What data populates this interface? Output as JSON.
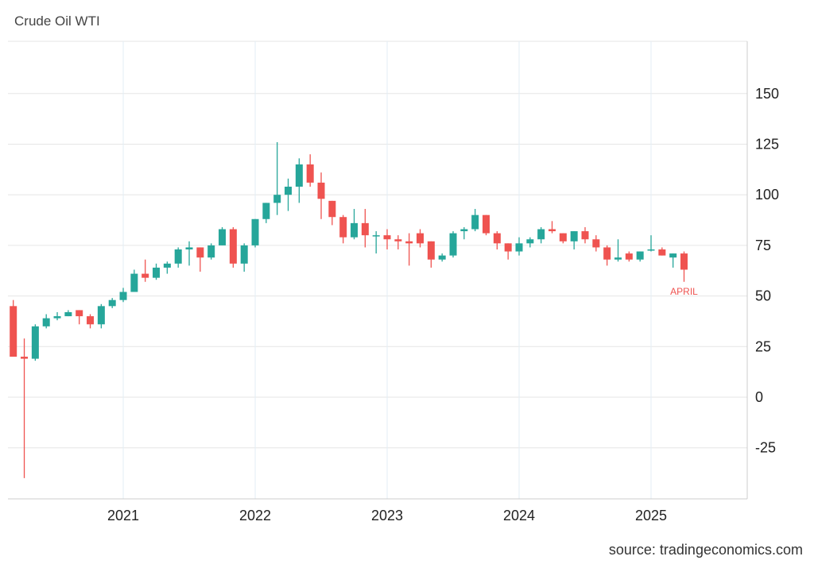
{
  "title": "Crude Oil WTI",
  "source": "source: tradingeconomics.com",
  "colors": {
    "up": "#26a69a",
    "down": "#ef5350",
    "grid": "#e6e6e6",
    "vgrid": "#e3eef5",
    "annotation": "#ef5350"
  },
  "chart_data": {
    "type": "candlestick",
    "title": "Crude Oil WTI",
    "xlabel": "",
    "ylabel": "",
    "ylim": [
      -50,
      175
    ],
    "yticks": [
      -25,
      0,
      25,
      50,
      75,
      100,
      125,
      150
    ],
    "xticks": [
      "2021",
      "2022",
      "2023",
      "2024",
      "2025"
    ],
    "annotation": {
      "text": "APRIL",
      "period": "2025-04"
    },
    "interval": "monthly",
    "candles": [
      [
        "2020-03",
        45,
        48,
        20,
        20
      ],
      [
        "2020-04",
        20,
        29,
        -40,
        19
      ],
      [
        "2020-05",
        19,
        36,
        18,
        35
      ],
      [
        "2020-06",
        35,
        41,
        34,
        39
      ],
      [
        "2020-07",
        39,
        42,
        38,
        40
      ],
      [
        "2020-08",
        40,
        43,
        40,
        42
      ],
      [
        "2020-09",
        43,
        43,
        36,
        40
      ],
      [
        "2020-10",
        40,
        41,
        34,
        36
      ],
      [
        "2020-11",
        36,
        46,
        34,
        45
      ],
      [
        "2020-12",
        45,
        49,
        44,
        48
      ],
      [
        "2021-01",
        48,
        54,
        47,
        52
      ],
      [
        "2021-02",
        52,
        63,
        52,
        61
      ],
      [
        "2021-03",
        61,
        68,
        57,
        59
      ],
      [
        "2021-04",
        59,
        66,
        58,
        64
      ],
      [
        "2021-05",
        64,
        67,
        61,
        66
      ],
      [
        "2021-06",
        66,
        74,
        64,
        73
      ],
      [
        "2021-07",
        73,
        77,
        65,
        74
      ],
      [
        "2021-08",
        74,
        74,
        62,
        69
      ],
      [
        "2021-09",
        69,
        76,
        68,
        75
      ],
      [
        "2021-10",
        75,
        84,
        75,
        83
      ],
      [
        "2021-11",
        83,
        84,
        64,
        66
      ],
      [
        "2021-12",
        66,
        76,
        62,
        75
      ],
      [
        "2022-01",
        75,
        88,
        74,
        88
      ],
      [
        "2022-02",
        88,
        96,
        86,
        96
      ],
      [
        "2022-03",
        96,
        126,
        90,
        100
      ],
      [
        "2022-04",
        100,
        108,
        92,
        104
      ],
      [
        "2022-05",
        104,
        118,
        96,
        115
      ],
      [
        "2022-06",
        115,
        120,
        104,
        106
      ],
      [
        "2022-07",
        106,
        111,
        88,
        98
      ],
      [
        "2022-08",
        97,
        97,
        85,
        89
      ],
      [
        "2022-09",
        89,
        90,
        76,
        79
      ],
      [
        "2022-10",
        79,
        93,
        78,
        86
      ],
      [
        "2022-11",
        86,
        93,
        74,
        80
      ],
      [
        "2022-12",
        80,
        82,
        71,
        80
      ],
      [
        "2023-01",
        80,
        83,
        73,
        78
      ],
      [
        "2023-02",
        78,
        80,
        73,
        77
      ],
      [
        "2023-03",
        77,
        81,
        65,
        76
      ],
      [
        "2023-04",
        81,
        83,
        74,
        76
      ],
      [
        "2023-05",
        77,
        77,
        64,
        68
      ],
      [
        "2023-06",
        68,
        71,
        67,
        70
      ],
      [
        "2023-07",
        70,
        82,
        69,
        81
      ],
      [
        "2023-08",
        82,
        84,
        78,
        83
      ],
      [
        "2023-09",
        83,
        93,
        82,
        90
      ],
      [
        "2023-10",
        90,
        90,
        80,
        81
      ],
      [
        "2023-11",
        81,
        82,
        73,
        76
      ],
      [
        "2023-12",
        76,
        76,
        68,
        72
      ],
      [
        "2024-01",
        72,
        79,
        70,
        76
      ],
      [
        "2024-02",
        76,
        79,
        74,
        78
      ],
      [
        "2024-03",
        78,
        84,
        76,
        83
      ],
      [
        "2024-04",
        83,
        87,
        81,
        82
      ],
      [
        "2024-05",
        81,
        81,
        76,
        77
      ],
      [
        "2024-06",
        77,
        82,
        73,
        82
      ],
      [
        "2024-07",
        82,
        84,
        76,
        78
      ],
      [
        "2024-08",
        78,
        80,
        72,
        74
      ],
      [
        "2024-09",
        74,
        75,
        65,
        68
      ],
      [
        "2024-10",
        68,
        78,
        67,
        69
      ],
      [
        "2024-11",
        71,
        72,
        67,
        68
      ],
      [
        "2024-12",
        68,
        72,
        67,
        72
      ],
      [
        "2025-01",
        73,
        80,
        72,
        73
      ],
      [
        "2025-02",
        73,
        74,
        70,
        70
      ],
      [
        "2025-03",
        69,
        71,
        64,
        71
      ],
      [
        "2025-04",
        71,
        72,
        57,
        63
      ]
    ]
  }
}
